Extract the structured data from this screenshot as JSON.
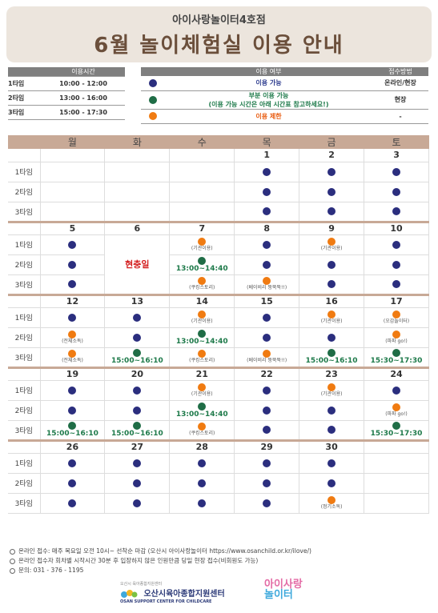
{
  "header": {
    "subtitle": "아이사랑놀이터4호점",
    "title": "6월 놀이체험실 이용 안내"
  },
  "timetable": {
    "header": "이용시간",
    "rows": [
      {
        "label": "1타임",
        "time": "10:00 - 12:00"
      },
      {
        "label": "2타임",
        "time": "13:00 - 16:00"
      },
      {
        "label": "3타임",
        "time": "15:00 - 17:30"
      }
    ]
  },
  "legend": {
    "header_status": "이용 여부",
    "header_method": "접수방법",
    "rows": [
      {
        "color": "blue",
        "text": "이용 가능",
        "method": "온라인/현장"
      },
      {
        "color": "green",
        "text": "부분 이용 가능",
        "text2": "(이용 가능 시간은 아래 시간표 참고하세요!)",
        "method": "현장"
      },
      {
        "color": "orange",
        "text": "이용 제한",
        "method": "-"
      }
    ]
  },
  "calendar": {
    "weekdays": [
      "월",
      "화",
      "수",
      "목",
      "금",
      "토"
    ],
    "row_labels": [
      "1타임",
      "2타임",
      "3타임"
    ],
    "weeks": [
      {
        "dates": [
          "",
          "",
          "",
          "1",
          "2",
          "3"
        ],
        "slots": [
          [
            "",
            "",
            "",
            "B",
            "B",
            "B"
          ],
          [
            "",
            "",
            "",
            "B",
            "B",
            "B"
          ],
          [
            "",
            "",
            "",
            "B",
            "B",
            "B"
          ]
        ]
      },
      {
        "dates": [
          "5",
          "6",
          "7",
          "8",
          "9",
          "10"
        ],
        "red_dates": [
          1
        ],
        "holiday": {
          "col": 1,
          "text": "현충일"
        },
        "slots": [
          [
            "B",
            "",
            "O|(기관이용)",
            "B",
            "O|(기관이용)",
            "B"
          ],
          [
            "B",
            "",
            "G|13:00~14:40",
            "B",
            "B",
            "B"
          ],
          [
            "B",
            "",
            "O|(쿠킹스토리)",
            "O|(베이비리 뚱뚝뚝!!)",
            "B",
            "B"
          ]
        ]
      },
      {
        "dates": [
          "12",
          "13",
          "14",
          "15",
          "16",
          "17"
        ],
        "slots": [
          [
            "B",
            "B",
            "O|(기관이용)",
            "B",
            "O|(기관이용)",
            "O|(오감놀이터)"
          ],
          [
            "O|(전체소독)",
            "B",
            "G|13:00~14:40",
            "B",
            "B",
            "O|(파파 go!)"
          ],
          [
            "O|(전체소독)",
            "G|15:00~16:10",
            "O|(쿠킹스토리)",
            "O|(베이비리 뚱뚝뚝!!)",
            "G|15:00~16:10",
            "G|15:30~17:30"
          ]
        ]
      },
      {
        "dates": [
          "19",
          "20",
          "21",
          "22",
          "23",
          "24"
        ],
        "slots": [
          [
            "B",
            "B",
            "O|(기관이용)",
            "B",
            "O|(기관이용)",
            "B"
          ],
          [
            "B",
            "B",
            "G|13:00~14:40",
            "B",
            "B",
            "O|(파파 go!)"
          ],
          [
            "G|15:00~16:10",
            "G|15:00~16:10",
            "O|(쿠킹스토리)",
            "B",
            "B",
            "G|15:30~17:30"
          ]
        ]
      },
      {
        "dates": [
          "26",
          "27",
          "28",
          "29",
          "30",
          ""
        ],
        "slots": [
          [
            "B",
            "B",
            "B",
            "B",
            "B",
            ""
          ],
          [
            "B",
            "B",
            "B",
            "B",
            "B",
            ""
          ],
          [
            "B",
            "B",
            "B",
            "B",
            "O|(정기소독)",
            ""
          ]
        ]
      }
    ]
  },
  "footer": {
    "lines": [
      "온라인 접수: 매주 목요일 오전 10시~ 선착순 마감 (오산시 아이사랑놀이터 https://www.osanchild.or.kr/ilove/)",
      "온라인 접수자 회차별 시작시간 30분 후 입장하지 않은 인원만큼 당일 현장 접수(비회원도 가능)",
      "문의: 031 - 376 - 1195"
    ]
  },
  "logos": {
    "org_small": "오산시 육아종합지원센터",
    "org_name": "오산시육아종합지원센터",
    "org_eng": "OSAN SUPPORT CENTER FOR CHILDCARE",
    "brand_line1": "아이사랑",
    "brand_line2": "놀이터"
  },
  "colors": {
    "blue": "#2b2e7e",
    "green": "#1f6d46",
    "orange": "#f07b11",
    "header_bg": "#ece5dd",
    "title_brown": "#6b4f3b",
    "calendar_header": "#c8a996"
  }
}
